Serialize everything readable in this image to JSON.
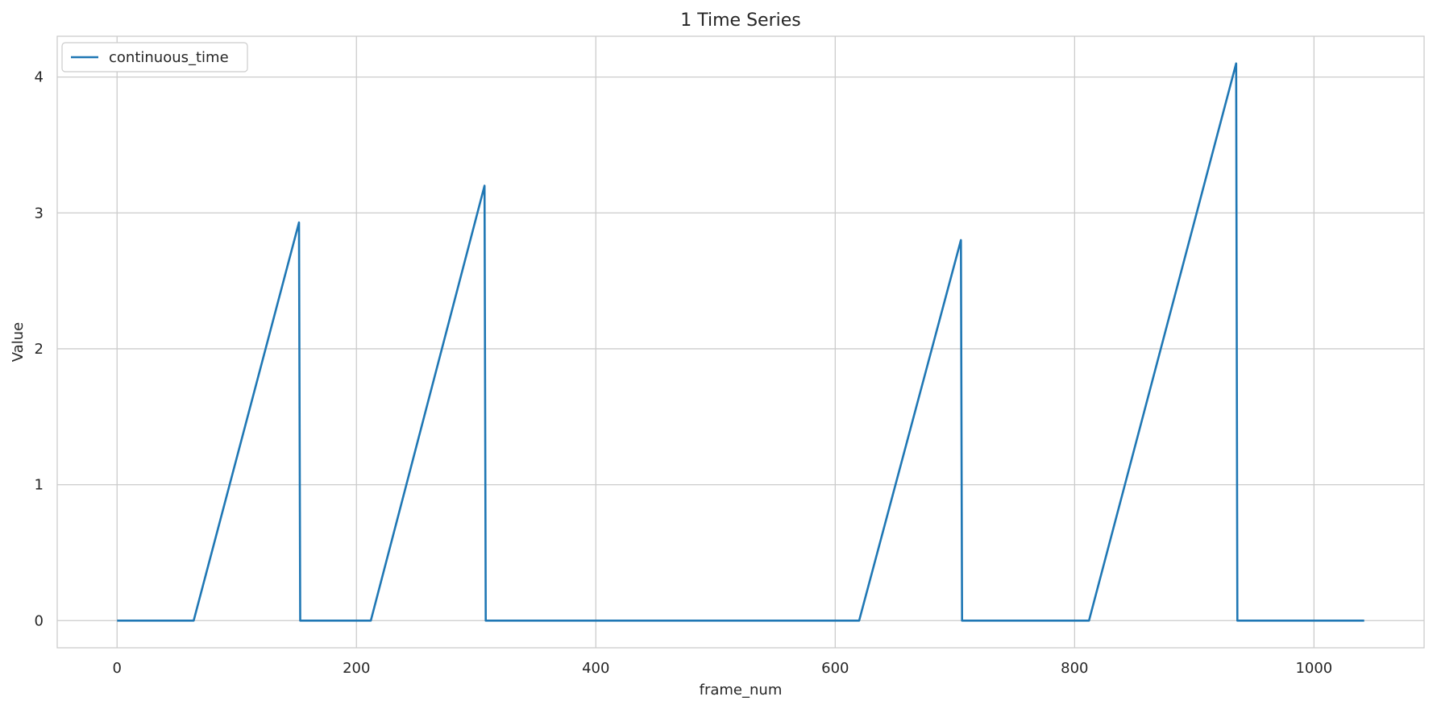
{
  "chart_data": {
    "type": "line",
    "title": "1 Time Series",
    "xlabel": "frame_num",
    "ylabel": "Value",
    "xlim": [
      -50,
      1092
    ],
    "ylim": [
      -0.2,
      4.3
    ],
    "xticks": [
      0,
      200,
      400,
      600,
      800,
      1000
    ],
    "yticks": [
      0,
      1,
      2,
      3,
      4
    ],
    "grid": true,
    "legend_position": "top-left",
    "series": [
      {
        "name": "continuous_time",
        "color": "#1f77b4",
        "x": [
          0,
          64,
          152,
          153,
          212,
          307,
          308,
          620,
          705,
          706,
          812,
          935,
          936,
          1042
        ],
        "y": [
          0,
          0,
          2.93,
          0,
          0,
          3.2,
          0,
          0,
          2.8,
          0,
          0,
          4.1,
          0,
          0
        ]
      }
    ]
  }
}
